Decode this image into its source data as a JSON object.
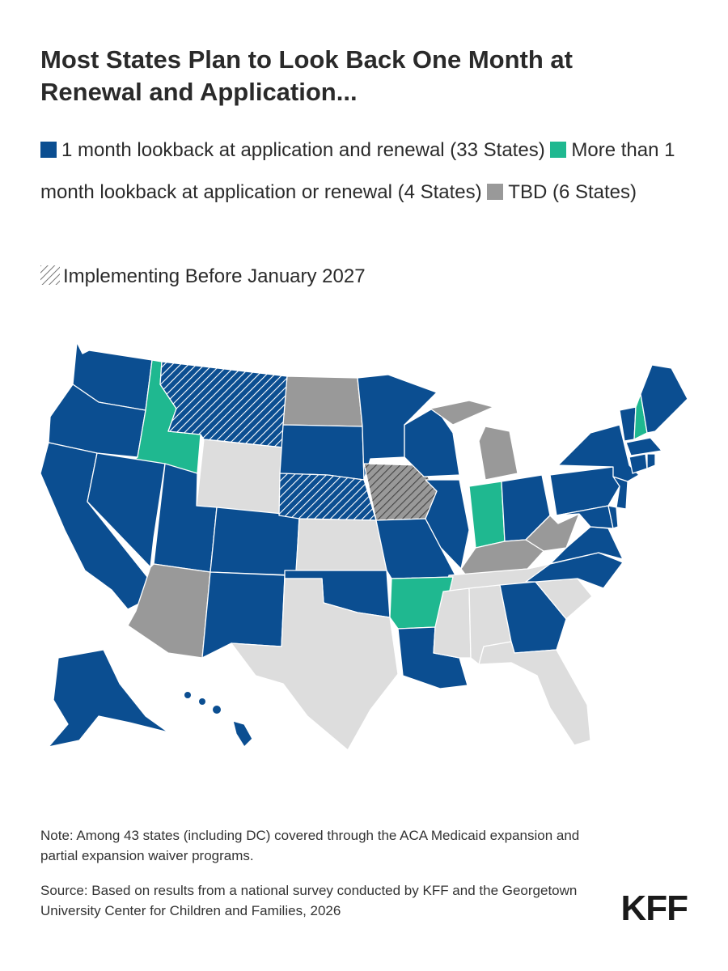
{
  "title": "Most States Plan to Look Back One Month at Renewal and Application...",
  "legend": {
    "items": [
      {
        "label": "1 month lookback at application and renewal (33 States)",
        "color": "#0b4e91"
      },
      {
        "label": "More than 1 month lookback at application or renewal (4 States)",
        "color": "#1fb890"
      },
      {
        "label": "TBD (6 States)",
        "color": "#999999"
      }
    ],
    "hatch_label": "Implementing Before January 2027",
    "not_included_color": "#dddddd"
  },
  "map": {
    "categories": {
      "one_month": [
        "WA",
        "OR",
        "CA",
        "NV",
        "UT",
        "CO",
        "NM",
        "SD",
        "MN",
        "WI",
        "IL",
        "MO",
        "OK",
        "LA",
        "GA",
        "NC",
        "VA",
        "MD",
        "DE",
        "NJ",
        "PA",
        "NY",
        "OH",
        "VT",
        "ME",
        "MA",
        "CT",
        "RI",
        "AK",
        "HI",
        "DC",
        "MT",
        "NE"
      ],
      "more_than_one_month": [
        "ID",
        "IN",
        "AR",
        "NH"
      ],
      "tbd": [
        "ND",
        "MI",
        "IA",
        "KY",
        "WV",
        "AZ"
      ],
      "not_covered": [
        "WY",
        "KS",
        "TX",
        "TN",
        "MS",
        "AL",
        "SC",
        "FL"
      ],
      "implementing_before_jan_2027": [
        "MT",
        "NE",
        "IA"
      ]
    }
  },
  "note": "Note: Among 43 states (including DC) covered through the ACA Medicaid expansion and partial expansion waiver programs.",
  "source": "Source: Based on results from a national survey conducted by KFF and the Georgetown University Center for Children and Families, 2026",
  "logo": "KFF"
}
